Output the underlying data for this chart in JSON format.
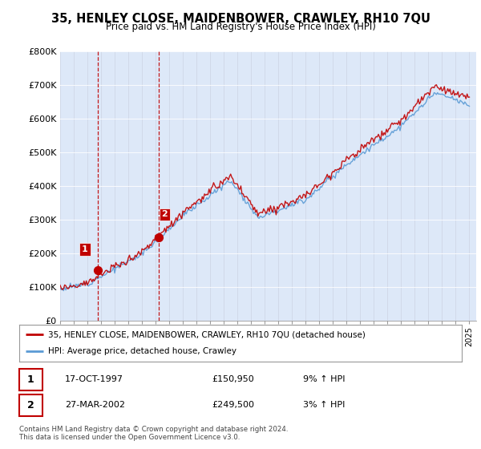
{
  "title": "35, HENLEY CLOSE, MAIDENBOWER, CRAWLEY, RH10 7QU",
  "subtitle": "Price paid vs. HM Land Registry's House Price Index (HPI)",
  "ylim": [
    0,
    800000
  ],
  "yticks": [
    0,
    100000,
    200000,
    300000,
    400000,
    500000,
    600000,
    700000,
    800000
  ],
  "ytick_labels": [
    "£0",
    "£100K",
    "£200K",
    "£300K",
    "£400K",
    "£500K",
    "£600K",
    "£700K",
    "£800K"
  ],
  "sale1_date": 1997.79,
  "sale1_price": 150950,
  "sale2_date": 2002.23,
  "sale2_price": 249500,
  "hpi_color": "#5b9bd5",
  "price_color": "#c00000",
  "vline_color": "#c00000",
  "legend_line1": "35, HENLEY CLOSE, MAIDENBOWER, CRAWLEY, RH10 7QU (detached house)",
  "legend_line2": "HPI: Average price, detached house, Crawley",
  "table_row1": [
    "1",
    "17-OCT-1997",
    "£150,950",
    "9% ↑ HPI"
  ],
  "table_row2": [
    "2",
    "27-MAR-2002",
    "£249,500",
    "3% ↑ HPI"
  ],
  "footnote": "Contains HM Land Registry data © Crown copyright and database right 2024.\nThis data is licensed under the Open Government Licence v3.0.",
  "background_color": "#dde8f8",
  "plot_bg": "#dde8f8"
}
